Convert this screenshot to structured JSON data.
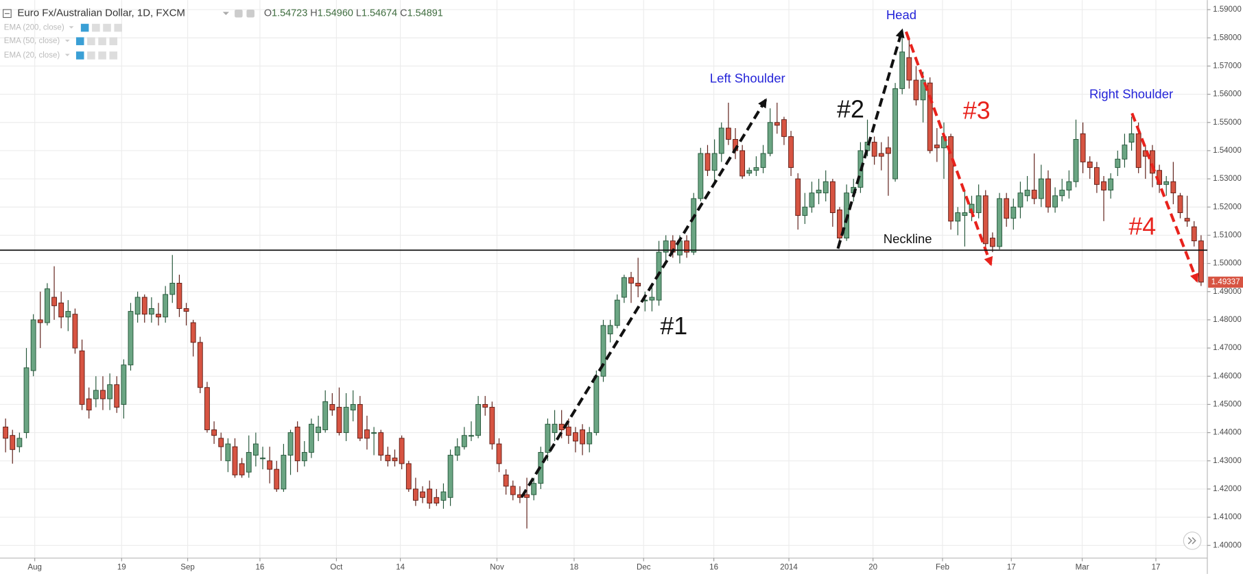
{
  "header": {
    "symbol": "Euro Fx/Australian Dollar, 1D, FXCM",
    "ohlc": [
      {
        "key": "O",
        "value": "1.54723"
      },
      {
        "key": "H",
        "value": "1.54960"
      },
      {
        "key": "L",
        "value": "1.54674"
      },
      {
        "key": "C",
        "value": "1.54891"
      }
    ]
  },
  "indicators": [
    "EMA (200, close)",
    "EMA (50, close)",
    "EMA (20, close)"
  ],
  "annotations": [
    "Left Shoulder",
    "Head",
    "Right Shoulder",
    "#1",
    "#2",
    "#3",
    "#4"
  ],
  "chart_data": {
    "type": "candlestick",
    "up_color": "#6ba583",
    "up_border": "#225437",
    "down_color": "#d75442",
    "down_border": "#5b1a13",
    "grid": true,
    "xlim": [
      -0.8,
      172.9
    ],
    "xticks": [
      {
        "value": 4.2,
        "label": "Aug"
      },
      {
        "value": 16.7,
        "label": "19"
      },
      {
        "value": 26.2,
        "label": "Sep"
      },
      {
        "value": 36.6,
        "label": "16"
      },
      {
        "value": 47.6,
        "label": "Oct"
      },
      {
        "value": 56.8,
        "label": "14"
      },
      {
        "value": 70.7,
        "label": "Nov"
      },
      {
        "value": 81.8,
        "label": "18"
      },
      {
        "value": 91.8,
        "label": "Dec"
      },
      {
        "value": 101.9,
        "label": "16"
      },
      {
        "value": 112.7,
        "label": "2014"
      },
      {
        "value": 124.8,
        "label": "20"
      },
      {
        "value": 134.8,
        "label": "Feb"
      },
      {
        "value": 144.7,
        "label": "17"
      },
      {
        "value": 154.9,
        "label": "Mar"
      },
      {
        "value": 165.5,
        "label": "17"
      }
    ],
    "ylim": [
      1.3955,
      1.5934
    ],
    "yticks": [
      {
        "value": 1.4,
        "label": "1.40000"
      },
      {
        "value": 1.41,
        "label": "1.41000"
      },
      {
        "value": 1.42,
        "label": "1.42000"
      },
      {
        "value": 1.43,
        "label": "1.43000"
      },
      {
        "value": 1.44,
        "label": "1.44000"
      },
      {
        "value": 1.45,
        "label": "1.45000"
      },
      {
        "value": 1.46,
        "label": "1.46000"
      },
      {
        "value": 1.47,
        "label": "1.47000"
      },
      {
        "value": 1.48,
        "label": "1.48000"
      },
      {
        "value": 1.49,
        "label": "1.49000"
      },
      {
        "value": 1.5,
        "label": "1.50000"
      },
      {
        "value": 1.51,
        "label": "1.51000"
      },
      {
        "value": 1.52,
        "label": "1.52000"
      },
      {
        "value": 1.53,
        "label": "1.53000"
      },
      {
        "value": 1.54,
        "label": "1.54000"
      },
      {
        "value": 1.55,
        "label": "1.55000"
      },
      {
        "value": 1.56,
        "label": "1.56000"
      },
      {
        "value": 1.57,
        "label": "1.57000"
      },
      {
        "value": 1.58,
        "label": "1.58000"
      },
      {
        "value": 1.59,
        "label": "1.59000"
      }
    ],
    "neckline": {
      "value": 1.5047,
      "label": "Neckline"
    },
    "last_price": {
      "value": 1.49337,
      "label": "1.49337"
    },
    "open": [
      1.442,
      1.439,
      1.435,
      1.44,
      1.462,
      1.48,
      1.479,
      1.488,
      1.486,
      1.481,
      1.482,
      1.469,
      1.452,
      1.452,
      1.455,
      1.452,
      1.457,
      1.45,
      1.464,
      1.482,
      1.488,
      1.482,
      1.482,
      1.481,
      1.489,
      1.493,
      1.484,
      1.479,
      1.472,
      1.456,
      1.441,
      1.438,
      1.43,
      1.435,
      1.429,
      1.426,
      1.432,
      1.431,
      1.43,
      1.427,
      1.42,
      1.432,
      1.442,
      1.43,
      1.433,
      1.44,
      1.441,
      1.45,
      1.449,
      1.44,
      1.448,
      1.45,
      1.441,
      1.44,
      1.44,
      1.432,
      1.431,
      1.438,
      1.429,
      1.42,
      1.419,
      1.42,
      1.417,
      1.416,
      1.417,
      1.432,
      1.435,
      1.439,
      1.439,
      1.45,
      1.449,
      1.436,
      1.425,
      1.421,
      1.418,
      1.418,
      1.418,
      1.422,
      1.433,
      1.44,
      1.443,
      1.442,
      1.44,
      1.441,
      1.436,
      1.44,
      1.46,
      1.475,
      1.478,
      1.488,
      1.495,
      1.493,
      1.487,
      1.487,
      1.487,
      1.504,
      1.508,
      1.503,
      1.508,
      1.504,
      1.523,
      1.539,
      1.533,
      1.539,
      1.548,
      1.544,
      1.54,
      1.532,
      1.533,
      1.534,
      1.539,
      1.55,
      1.551,
      1.545,
      1.53,
      1.517,
      1.52,
      1.525,
      1.525,
      1.529,
      1.519,
      1.509,
      1.525,
      1.527,
      1.54,
      1.543,
      1.539,
      1.541,
      1.53,
      1.562,
      1.573,
      1.565,
      1.558,
      1.564,
      1.542,
      1.541,
      1.545,
      1.515,
      1.517,
      1.518,
      1.518,
      1.524,
      1.509,
      1.506,
      1.523,
      1.516,
      1.52,
      1.524,
      1.526,
      1.523,
      1.53,
      1.52,
      1.524,
      1.526,
      1.529,
      1.546,
      1.536,
      1.534,
      1.529,
      1.526,
      1.534,
      1.537,
      1.543,
      1.546,
      1.54,
      1.54,
      1.533,
      1.528,
      1.529,
      1.524,
      1.516,
      1.513,
      1.508
    ],
    "high": [
      1.445,
      1.441,
      1.44,
      1.47,
      1.482,
      1.49,
      1.493,
      1.499,
      1.49,
      1.487,
      1.484,
      1.473,
      1.456,
      1.46,
      1.46,
      1.461,
      1.46,
      1.466,
      1.486,
      1.49,
      1.489,
      1.488,
      1.486,
      1.492,
      1.503,
      1.496,
      1.486,
      1.48,
      1.474,
      1.458,
      1.444,
      1.44,
      1.438,
      1.438,
      1.431,
      1.439,
      1.44,
      1.435,
      1.435,
      1.43,
      1.436,
      1.441,
      1.444,
      1.437,
      1.445,
      1.446,
      1.455,
      1.454,
      1.456,
      1.454,
      1.455,
      1.453,
      1.446,
      1.442,
      1.441,
      1.435,
      1.434,
      1.439,
      1.43,
      1.424,
      1.421,
      1.423,
      1.42,
      1.422,
      1.434,
      1.438,
      1.442,
      1.444,
      1.453,
      1.453,
      1.451,
      1.438,
      1.427,
      1.423,
      1.421,
      1.424,
      1.424,
      1.435,
      1.445,
      1.448,
      1.448,
      1.445,
      1.442,
      1.443,
      1.442,
      1.462,
      1.48,
      1.48,
      1.489,
      1.496,
      1.497,
      1.502,
      1.49,
      1.492,
      1.508,
      1.51,
      1.51,
      1.51,
      1.51,
      1.525,
      1.541,
      1.542,
      1.544,
      1.55,
      1.557,
      1.548,
      1.542,
      1.534,
      1.538,
      1.542,
      1.555,
      1.557,
      1.552,
      1.547,
      1.532,
      1.525,
      1.529,
      1.53,
      1.533,
      1.53,
      1.52,
      1.528,
      1.53,
      1.543,
      1.551,
      1.545,
      1.543,
      1.545,
      1.564,
      1.58,
      1.58,
      1.57,
      1.568,
      1.566,
      1.548,
      1.55,
      1.546,
      1.52,
      1.526,
      1.524,
      1.528,
      1.526,
      1.511,
      1.525,
      1.525,
      1.523,
      1.529,
      1.531,
      1.539,
      1.535,
      1.533,
      1.527,
      1.53,
      1.533,
      1.551,
      1.55,
      1.538,
      1.536,
      1.531,
      1.532,
      1.54,
      1.546,
      1.552,
      1.55,
      1.542,
      1.542,
      1.535,
      1.531,
      1.536,
      1.525,
      1.524,
      1.515,
      1.51
    ],
    "low": [
      1.433,
      1.429,
      1.433,
      1.438,
      1.46,
      1.47,
      1.478,
      1.48,
      1.477,
      1.476,
      1.468,
      1.448,
      1.445,
      1.449,
      1.448,
      1.448,
      1.447,
      1.445,
      1.462,
      1.479,
      1.479,
      1.479,
      1.478,
      1.479,
      1.486,
      1.481,
      1.478,
      1.467,
      1.454,
      1.44,
      1.436,
      1.43,
      1.426,
      1.424,
      1.424,
      1.424,
      1.428,
      1.427,
      1.422,
      1.419,
      1.419,
      1.425,
      1.426,
      1.428,
      1.431,
      1.437,
      1.44,
      1.446,
      1.439,
      1.437,
      1.444,
      1.437,
      1.434,
      1.432,
      1.43,
      1.428,
      1.428,
      1.427,
      1.419,
      1.414,
      1.415,
      1.413,
      1.414,
      1.413,
      1.414,
      1.43,
      1.434,
      1.437,
      1.438,
      1.446,
      1.434,
      1.426,
      1.418,
      1.416,
      1.415,
      1.406,
      1.416,
      1.42,
      1.43,
      1.437,
      1.438,
      1.436,
      1.433,
      1.432,
      1.433,
      1.439,
      1.458,
      1.472,
      1.477,
      1.486,
      1.486,
      1.488,
      1.483,
      1.483,
      1.485,
      1.501,
      1.502,
      1.5,
      1.502,
      1.503,
      1.522,
      1.531,
      1.529,
      1.536,
      1.542,
      1.537,
      1.53,
      1.531,
      1.531,
      1.532,
      1.538,
      1.546,
      1.542,
      1.531,
      1.512,
      1.514,
      1.518,
      1.521,
      1.522,
      1.513,
      1.506,
      1.508,
      1.522,
      1.525,
      1.538,
      1.535,
      1.533,
      1.524,
      1.529,
      1.56,
      1.562,
      1.556,
      1.55,
      1.539,
      1.536,
      1.53,
      1.512,
      1.51,
      1.506,
      1.515,
      1.516,
      1.505,
      1.504,
      1.505,
      1.513,
      1.512,
      1.516,
      1.522,
      1.521,
      1.52,
      1.518,
      1.518,
      1.522,
      1.523,
      1.527,
      1.532,
      1.53,
      1.525,
      1.515,
      1.523,
      1.531,
      1.534,
      1.54,
      1.532,
      1.53,
      1.527,
      1.525,
      1.524,
      1.521,
      1.516,
      1.513,
      1.506,
      1.492
    ],
    "close": [
      1.438,
      1.434,
      1.438,
      1.463,
      1.48,
      1.479,
      1.491,
      1.485,
      1.481,
      1.483,
      1.47,
      1.45,
      1.448,
      1.455,
      1.452,
      1.457,
      1.449,
      1.464,
      1.483,
      1.488,
      1.482,
      1.484,
      1.481,
      1.489,
      1.493,
      1.484,
      1.483,
      1.472,
      1.456,
      1.441,
      1.439,
      1.435,
      1.436,
      1.425,
      1.425,
      1.433,
      1.436,
      1.431,
      1.427,
      1.42,
      1.432,
      1.44,
      1.43,
      1.433,
      1.443,
      1.442,
      1.451,
      1.448,
      1.44,
      1.449,
      1.45,
      1.438,
      1.438,
      1.44,
      1.432,
      1.43,
      1.43,
      1.429,
      1.42,
      1.416,
      1.417,
      1.415,
      1.415,
      1.419,
      1.432,
      1.435,
      1.439,
      1.439,
      1.45,
      1.449,
      1.436,
      1.429,
      1.421,
      1.418,
      1.417,
      1.417,
      1.422,
      1.433,
      1.443,
      1.443,
      1.441,
      1.439,
      1.437,
      1.436,
      1.44,
      1.46,
      1.478,
      1.478,
      1.487,
      1.495,
      1.493,
      1.492,
      1.487,
      1.488,
      1.504,
      1.508,
      1.504,
      1.508,
      1.504,
      1.523,
      1.539,
      1.533,
      1.539,
      1.548,
      1.544,
      1.54,
      1.531,
      1.533,
      1.534,
      1.539,
      1.55,
      1.549,
      1.545,
      1.534,
      1.517,
      1.52,
      1.525,
      1.526,
      1.529,
      1.518,
      1.509,
      1.525,
      1.527,
      1.54,
      1.543,
      1.538,
      1.538,
      1.539,
      1.562,
      1.575,
      1.565,
      1.558,
      1.565,
      1.54,
      1.541,
      1.545,
      1.515,
      1.518,
      1.518,
      1.521,
      1.524,
      1.507,
      1.506,
      1.523,
      1.516,
      1.52,
      1.525,
      1.526,
      1.523,
      1.53,
      1.52,
      1.524,
      1.526,
      1.529,
      1.544,
      1.536,
      1.534,
      1.528,
      1.526,
      1.53,
      1.537,
      1.542,
      1.546,
      1.534,
      1.538,
      1.532,
      1.528,
      1.529,
      1.525,
      1.518,
      1.515,
      1.508,
      1.49337
    ]
  }
}
